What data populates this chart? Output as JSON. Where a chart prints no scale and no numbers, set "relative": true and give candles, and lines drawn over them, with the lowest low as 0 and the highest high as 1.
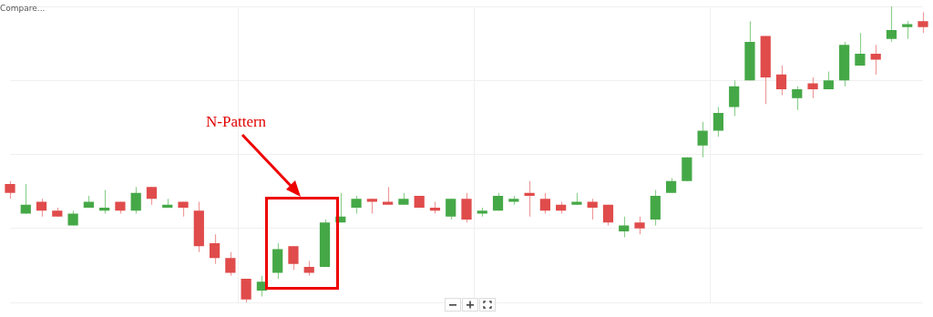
{
  "chart_data": {
    "type": "candlestick",
    "relative": true,
    "grid": true,
    "categories": [
      null,
      null,
      null,
      null,
      null,
      null,
      null,
      null,
      null,
      null,
      null,
      null,
      null,
      null,
      null,
      null,
      null,
      null,
      null,
      null,
      null,
      null,
      null,
      null,
      null,
      null,
      null,
      null,
      null,
      null,
      null,
      null,
      null,
      null,
      null,
      null,
      null,
      null,
      null,
      null,
      null,
      null,
      null,
      null,
      null,
      null,
      null,
      null,
      null,
      null,
      null,
      null,
      null,
      null,
      null,
      null,
      null,
      null,
      null
    ],
    "ohlc": [
      [
        0.4,
        0.41,
        0.35,
        0.37
      ],
      [
        0.3,
        0.4,
        0.3,
        0.33
      ],
      [
        0.34,
        0.35,
        0.29,
        0.31
      ],
      [
        0.31,
        0.32,
        0.29,
        0.29
      ],
      [
        0.26,
        0.31,
        0.26,
        0.3
      ],
      [
        0.32,
        0.36,
        0.32,
        0.34
      ],
      [
        0.31,
        0.38,
        0.3,
        0.32
      ],
      [
        0.34,
        0.34,
        0.3,
        0.31
      ],
      [
        0.31,
        0.39,
        0.3,
        0.37
      ],
      [
        0.39,
        0.39,
        0.33,
        0.35
      ],
      [
        0.32,
        0.35,
        0.32,
        0.33
      ],
      [
        0.34,
        0.34,
        0.29,
        0.32
      ],
      [
        0.31,
        0.34,
        0.17,
        0.19
      ],
      [
        0.2,
        0.23,
        0.13,
        0.15
      ],
      [
        0.15,
        0.17,
        0.09,
        0.1
      ],
      [
        0.08,
        0.08,
        0,
        0.01
      ],
      [
        0.04,
        0.09,
        0.02,
        0.07
      ],
      [
        0.1,
        0.2,
        0.08,
        0.18
      ],
      [
        0.19,
        0.19,
        0.11,
        0.13
      ],
      [
        0.12,
        0.14,
        0.09,
        0.1
      ],
      [
        0.12,
        0.28,
        0.12,
        0.27
      ],
      [
        0.27,
        0.37,
        0.27,
        0.29
      ],
      [
        0.32,
        0.36,
        0.3,
        0.35
      ],
      [
        0.35,
        0.35,
        0.3,
        0.34
      ],
      [
        0.34,
        0.39,
        0.33,
        0.33
      ],
      [
        0.33,
        0.37,
        0.33,
        0.35
      ],
      [
        0.36,
        0.36,
        0.32,
        0.32
      ],
      [
        0.32,
        0.34,
        0.3,
        0.31
      ],
      [
        0.29,
        0.35,
        0.28,
        0.35
      ],
      [
        0.35,
        0.37,
        0.27,
        0.28
      ],
      [
        0.3,
        0.32,
        0.29,
        0.31
      ],
      [
        0.31,
        0.37,
        0.31,
        0.36
      ],
      [
        0.34,
        0.36,
        0.33,
        0.35
      ],
      [
        0.37,
        0.41,
        0.29,
        0.36
      ],
      [
        0.35,
        0.37,
        0.3,
        0.31
      ],
      [
        0.33,
        0.34,
        0.3,
        0.31
      ],
      [
        0.33,
        0.37,
        0.33,
        0.34
      ],
      [
        0.34,
        0.35,
        0.28,
        0.32
      ],
      [
        0.33,
        0.33,
        0.26,
        0.27
      ],
      [
        0.24,
        0.29,
        0.22,
        0.26
      ],
      [
        0.27,
        0.29,
        0.23,
        0.25
      ],
      [
        0.28,
        0.38,
        0.26,
        0.36
      ],
      [
        0.37,
        0.42,
        0.37,
        0.41
      ],
      [
        0.41,
        0.49,
        0.41,
        0.49
      ],
      [
        0.53,
        0.61,
        0.49,
        0.58
      ],
      [
        0.58,
        0.66,
        0.56,
        0.64
      ],
      [
        0.66,
        0.75,
        0.63,
        0.73
      ],
      [
        0.75,
        0.95,
        0.75,
        0.88
      ],
      [
        0.9,
        0.9,
        0.67,
        0.76
      ],
      [
        0.77,
        0.8,
        0.7,
        0.72
      ],
      [
        0.69,
        0.73,
        0.65,
        0.72
      ],
      [
        0.74,
        0.76,
        0.69,
        0.72
      ],
      [
        0.72,
        0.78,
        0.72,
        0.75
      ],
      [
        0.75,
        0.88,
        0.73,
        0.87
      ],
      [
        0.8,
        0.91,
        0.8,
        0.84
      ],
      [
        0.84,
        0.87,
        0.77,
        0.82
      ],
      [
        0.89,
        1,
        0.88,
        0.92
      ],
      [
        0.93,
        0.95,
        0.89,
        0.94
      ],
      [
        0.95,
        0.98,
        0.91,
        0.93
      ]
    ],
    "annotations": [
      "N-Pattern",
      "Compare..."
    ]
  }
}
